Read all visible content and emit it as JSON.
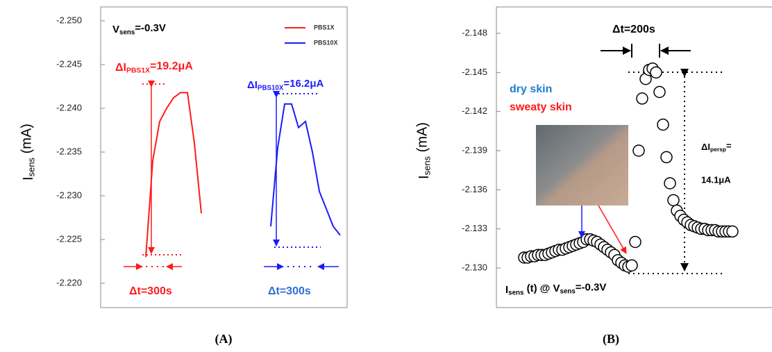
{
  "chart_data": [
    {
      "type": "line",
      "y_label": [
        "I",
        "sens",
        " (mA)"
      ],
      "ylim": [
        -2.25,
        -2.22
      ],
      "y_inverted": true,
      "yticks": [
        {
          "value": -2.25,
          "label": "-2.250"
        },
        -2.245,
        {
          "value": -2.24,
          "label": "-2.240"
        },
        -2.235,
        {
          "value": -2.23,
          "label": "-2.230"
        },
        -2.225,
        {
          "value": -2.22,
          "label": "-2.220"
        }
      ],
      "series": [
        {
          "name": "PBS1X",
          "color": "#ff1a1a",
          "values": [
            null,
            null,
            null,
            null,
            null,
            null,
            -2.223,
            -2.234,
            -2.2385,
            -2.24,
            -2.2412,
            -2.2418,
            -2.2418,
            -2.236,
            -2.228,
            null,
            null,
            null,
            null,
            null,
            null,
            null,
            null,
            null,
            null,
            null,
            null,
            null,
            null,
            null,
            null,
            null,
            null,
            null,
            null
          ]
        },
        {
          "name": "PBS10X",
          "color": "#1a1aff",
          "values": [
            null,
            null,
            null,
            null,
            null,
            null,
            null,
            null,
            null,
            null,
            null,
            null,
            null,
            null,
            null,
            null,
            null,
            null,
            null,
            null,
            null,
            null,
            null,
            null,
            -2.2265,
            -2.2355,
            -2.2405,
            -2.2405,
            -2.2378,
            -2.2385,
            -2.235,
            -2.2305,
            -2.2285,
            -2.2265,
            -2.2255
          ]
        }
      ],
      "annotations": {
        "condition": [
          "V",
          "sens",
          "=-0.3V"
        ],
        "delta_1x": [
          "ΔI",
          "PBS1X",
          "=19.2μA"
        ],
        "delta_10x": [
          "ΔI",
          "PBS10X",
          "=16.2μA"
        ],
        "dt_1x": "Δt=300s",
        "dt_10x": "Δt=300s"
      },
      "panel_label": "(A)"
    },
    {
      "type": "scatter",
      "y_label": [
        "I",
        "sens",
        " (mA)"
      ],
      "ylim": [
        -2.148,
        -2.13
      ],
      "y_inverted": true,
      "yticks": [
        -2.148,
        -2.145,
        -2.142,
        -2.139,
        -2.136,
        -2.133,
        {
          "value": -2.13,
          "label": "-2.130"
        }
      ],
      "series": [
        {
          "color": "#000000",
          "values": [
            -2.1308,
            -2.1308,
            -2.1309,
            -2.1309,
            -2.131,
            -2.131,
            -2.131,
            -2.1311,
            -2.1312,
            -2.1313,
            -2.1314,
            -2.1314,
            -2.1315,
            -2.1316,
            -2.1317,
            -2.1318,
            -2.1319,
            -2.132,
            -2.1322,
            -2.1322,
            -2.1321,
            -2.132,
            -2.1318,
            -2.1316,
            -2.1314,
            -2.1312,
            -2.131,
            -2.1306,
            -2.1304,
            -2.1302,
            -2.1301,
            -2.1302,
            -2.132,
            -2.139,
            -2.143,
            -2.1445,
            -2.1452,
            -2.1453,
            -2.145,
            -2.1435,
            -2.141,
            -2.1385,
            -2.1365,
            -2.1352,
            -2.1344,
            -2.134,
            -2.1337,
            -2.1335,
            -2.1333,
            -2.1332,
            -2.1331,
            -2.133,
            -2.133,
            -2.1329,
            -2.1329,
            -2.1329,
            -2.1328,
            -2.1328,
            -2.1328,
            -2.1328,
            -2.1328
          ]
        }
      ],
      "annotations": {
        "dt": "Δt=200s",
        "dry": "dry skin",
        "sweaty": "sweaty skin",
        "delta_a": [
          "ΔI",
          "persp",
          "="
        ],
        "delta_b": "14.1μA",
        "condition": [
          "I",
          "sens",
          " (t) @ V",
          "sens",
          "=-0.3V"
        ]
      },
      "panel_label": "(B)"
    }
  ]
}
